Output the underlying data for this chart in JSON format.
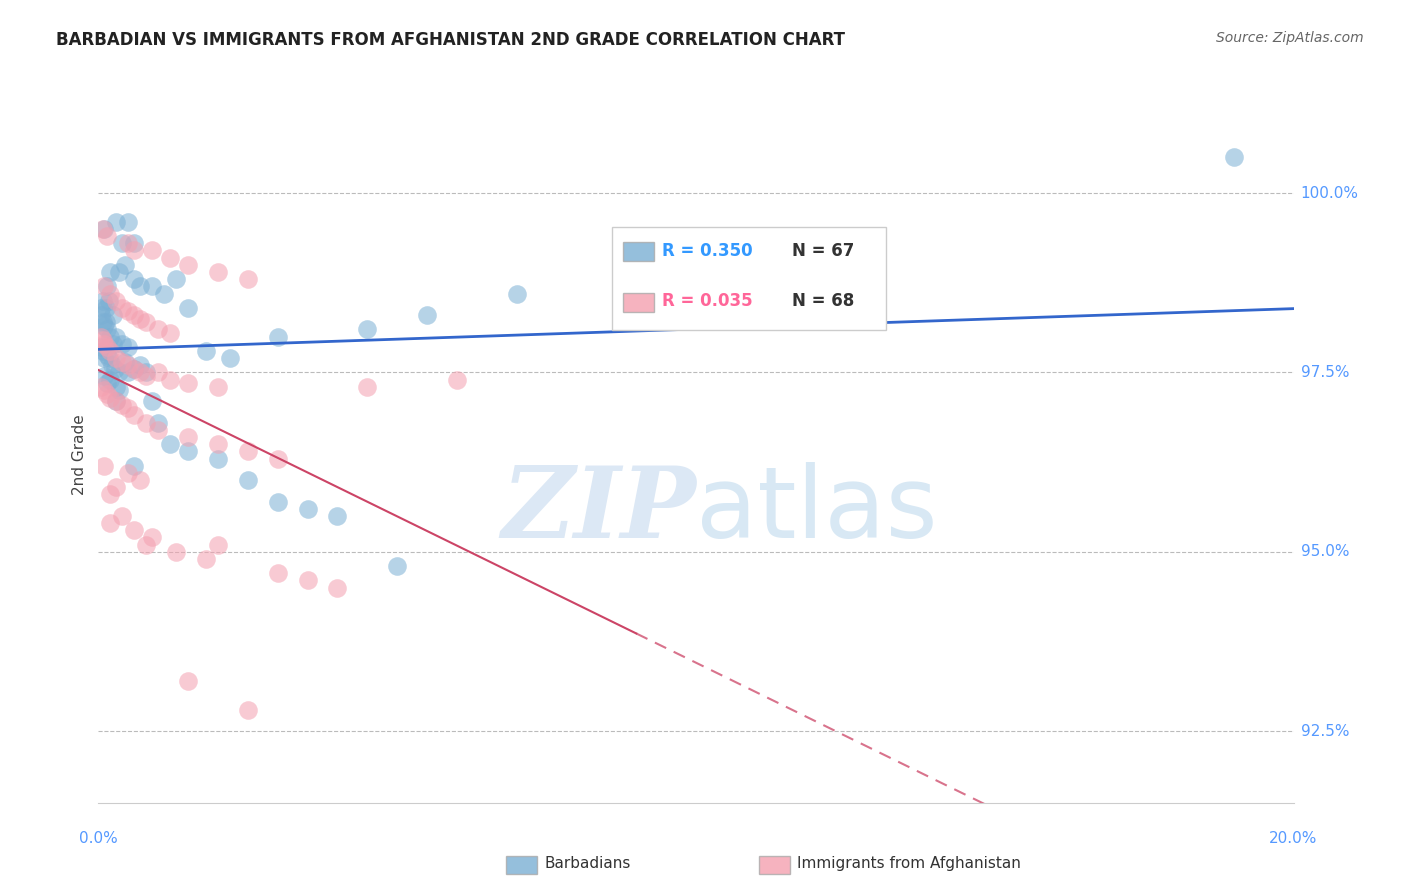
{
  "title": "BARBADIAN VS IMMIGRANTS FROM AFGHANISTAN 2ND GRADE CORRELATION CHART",
  "source": "Source: ZipAtlas.com",
  "ylabel": "2nd Grade",
  "yticks": [
    92.5,
    95.0,
    97.5,
    100.0
  ],
  "ytick_labels": [
    "92.5%",
    "95.0%",
    "97.5%",
    "100.0%"
  ],
  "xmin": 0.0,
  "xmax": 20.0,
  "ymin": 91.5,
  "ymax": 101.2,
  "blue_R": 0.35,
  "blue_N": 67,
  "pink_R": 0.035,
  "pink_N": 68,
  "blue_color": "#7bafd4",
  "pink_color": "#f4a0b0",
  "blue_line_color": "#3366cc",
  "pink_line_color": "#cc4466",
  "legend_R_color_blue": "#3399ff",
  "legend_R_color_pink": "#ff6699",
  "legend_N_color": "#333333",
  "watermark_color": "#dce8f5",
  "legend_label_blue": "Barbadians",
  "legend_label_pink": "Immigrants from Afghanistan",
  "blue_scatter": [
    [
      0.1,
      99.5
    ],
    [
      0.3,
      99.6
    ],
    [
      0.4,
      99.3
    ],
    [
      0.5,
      99.6
    ],
    [
      0.6,
      99.3
    ],
    [
      0.15,
      98.7
    ],
    [
      0.2,
      98.9
    ],
    [
      0.35,
      98.9
    ],
    [
      0.45,
      99.0
    ],
    [
      0.6,
      98.8
    ],
    [
      0.7,
      98.7
    ],
    [
      0.9,
      98.7
    ],
    [
      1.1,
      98.6
    ],
    [
      1.3,
      98.8
    ],
    [
      1.5,
      98.4
    ],
    [
      0.05,
      98.4
    ],
    [
      0.08,
      98.5
    ],
    [
      0.12,
      98.4
    ],
    [
      0.18,
      98.5
    ],
    [
      0.25,
      98.3
    ],
    [
      0.05,
      98.3
    ],
    [
      0.07,
      98.2
    ],
    [
      0.09,
      98.15
    ],
    [
      0.12,
      98.2
    ],
    [
      0.15,
      98.1
    ],
    [
      0.2,
      98.0
    ],
    [
      0.25,
      97.9
    ],
    [
      0.3,
      98.0
    ],
    [
      0.4,
      97.9
    ],
    [
      0.5,
      97.85
    ],
    [
      0.05,
      97.85
    ],
    [
      0.07,
      97.8
    ],
    [
      0.1,
      97.7
    ],
    [
      0.15,
      97.75
    ],
    [
      0.18,
      97.7
    ],
    [
      0.22,
      97.6
    ],
    [
      0.28,
      97.55
    ],
    [
      0.35,
      97.5
    ],
    [
      0.45,
      97.65
    ],
    [
      0.5,
      97.5
    ],
    [
      0.6,
      97.55
    ],
    [
      0.7,
      97.6
    ],
    [
      0.8,
      97.5
    ],
    [
      0.1,
      97.45
    ],
    [
      0.15,
      97.35
    ],
    [
      0.2,
      97.4
    ],
    [
      0.3,
      97.3
    ],
    [
      0.35,
      97.25
    ],
    [
      1.8,
      97.8
    ],
    [
      2.2,
      97.7
    ],
    [
      3.0,
      98.0
    ],
    [
      4.5,
      98.1
    ],
    [
      5.5,
      98.3
    ],
    [
      7.0,
      98.6
    ],
    [
      0.9,
      97.1
    ],
    [
      1.0,
      96.8
    ],
    [
      1.2,
      96.5
    ],
    [
      1.5,
      96.4
    ],
    [
      2.0,
      96.3
    ],
    [
      2.5,
      96.0
    ],
    [
      3.0,
      95.7
    ],
    [
      3.5,
      95.6
    ],
    [
      4.0,
      95.5
    ],
    [
      5.0,
      94.8
    ],
    [
      19.0,
      100.5
    ],
    [
      0.3,
      97.1
    ],
    [
      0.6,
      96.2
    ]
  ],
  "pink_scatter": [
    [
      0.08,
      99.5
    ],
    [
      0.15,
      99.4
    ],
    [
      0.5,
      99.3
    ],
    [
      0.6,
      99.2
    ],
    [
      0.9,
      99.2
    ],
    [
      1.2,
      99.1
    ],
    [
      1.5,
      99.0
    ],
    [
      2.0,
      98.9
    ],
    [
      2.5,
      98.8
    ],
    [
      0.1,
      98.7
    ],
    [
      0.2,
      98.6
    ],
    [
      0.3,
      98.5
    ],
    [
      0.4,
      98.4
    ],
    [
      0.5,
      98.35
    ],
    [
      0.6,
      98.3
    ],
    [
      0.7,
      98.25
    ],
    [
      0.8,
      98.2
    ],
    [
      1.0,
      98.1
    ],
    [
      1.2,
      98.05
    ],
    [
      0.05,
      98.0
    ],
    [
      0.08,
      97.95
    ],
    [
      0.1,
      97.9
    ],
    [
      0.15,
      97.85
    ],
    [
      0.2,
      97.8
    ],
    [
      0.3,
      97.7
    ],
    [
      0.4,
      97.65
    ],
    [
      0.5,
      97.6
    ],
    [
      0.6,
      97.55
    ],
    [
      0.7,
      97.5
    ],
    [
      0.8,
      97.45
    ],
    [
      1.0,
      97.5
    ],
    [
      1.2,
      97.4
    ],
    [
      1.5,
      97.35
    ],
    [
      2.0,
      97.3
    ],
    [
      0.05,
      97.3
    ],
    [
      0.1,
      97.25
    ],
    [
      0.15,
      97.2
    ],
    [
      0.2,
      97.15
    ],
    [
      0.3,
      97.1
    ],
    [
      0.4,
      97.05
    ],
    [
      0.5,
      97.0
    ],
    [
      0.6,
      96.9
    ],
    [
      0.8,
      96.8
    ],
    [
      1.0,
      96.7
    ],
    [
      1.5,
      96.6
    ],
    [
      2.0,
      96.5
    ],
    [
      2.5,
      96.4
    ],
    [
      3.0,
      96.3
    ],
    [
      4.5,
      97.3
    ],
    [
      6.0,
      97.4
    ],
    [
      0.2,
      95.8
    ],
    [
      0.4,
      95.5
    ],
    [
      0.6,
      95.3
    ],
    [
      0.9,
      95.2
    ],
    [
      1.3,
      95.0
    ],
    [
      1.8,
      94.9
    ],
    [
      3.0,
      94.7
    ],
    [
      3.5,
      94.6
    ],
    [
      4.0,
      94.5
    ],
    [
      1.5,
      93.2
    ],
    [
      2.5,
      92.8
    ],
    [
      0.7,
      96.0
    ],
    [
      0.3,
      95.9
    ],
    [
      0.5,
      96.1
    ],
    [
      0.1,
      96.2
    ],
    [
      0.2,
      95.4
    ],
    [
      0.8,
      95.1
    ],
    [
      2.0,
      95.1
    ]
  ]
}
